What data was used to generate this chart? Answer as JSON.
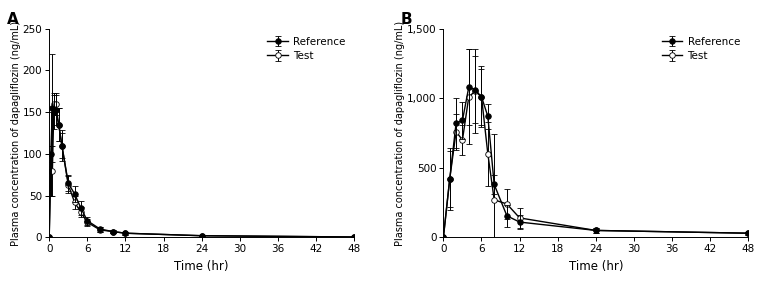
{
  "panel_A": {
    "title": "A",
    "ylabel": "Plasma concentration of dapagliflozin (ng/mL)",
    "xlabel": "Time (hr)",
    "ylim": [
      0,
      250
    ],
    "xlim": [
      0,
      48
    ],
    "yticks": [
      0,
      50,
      100,
      150,
      200,
      250
    ],
    "ytick_labels": [
      "0",
      "50",
      "100",
      "150",
      "200",
      "250"
    ],
    "xticks": [
      0,
      6,
      12,
      18,
      24,
      30,
      36,
      42,
      48
    ],
    "ref_x": [
      0,
      0.25,
      0.5,
      0.75,
      1.0,
      1.5,
      2.0,
      3.0,
      4.0,
      5.0,
      6.0,
      8.0,
      10.0,
      12.0,
      24.0,
      48.0
    ],
    "ref_y": [
      0,
      100,
      155,
      150,
      152,
      135,
      110,
      65,
      52,
      35,
      20,
      10,
      7,
      5,
      2,
      0.5
    ],
    "ref_err": [
      0,
      50,
      65,
      20,
      18,
      20,
      18,
      10,
      10,
      8,
      5,
      3,
      2,
      2,
      1,
      0.3
    ],
    "test_x": [
      0,
      0.25,
      0.5,
      0.75,
      1.0,
      1.5,
      2.0,
      3.0,
      4.0,
      5.0,
      6.0,
      8.0,
      10.0,
      12.0,
      24.0,
      48.0
    ],
    "test_y": [
      0,
      80,
      80,
      160,
      160,
      135,
      110,
      63,
      42,
      30,
      18,
      9,
      7,
      5,
      2,
      0.5
    ],
    "test_err": [
      0,
      30,
      30,
      13,
      13,
      20,
      15,
      10,
      8,
      6,
      4,
      3,
      2,
      2,
      1,
      0.2
    ]
  },
  "panel_B": {
    "title": "B",
    "ylabel": "Plasma concentration of dapagliflozin (ng/mL)",
    "xlabel": "Time (hr)",
    "ylim": [
      0,
      1500
    ],
    "xlim": [
      0,
      48
    ],
    "yticks": [
      0,
      500,
      1000,
      1500
    ],
    "ytick_labels": [
      "0",
      "500",
      "1,000",
      "1,500"
    ],
    "xticks": [
      0,
      6,
      12,
      18,
      24,
      30,
      36,
      42,
      48
    ],
    "ref_x": [
      0,
      1.0,
      2.0,
      3.0,
      4.0,
      5.0,
      6.0,
      7.0,
      8.0,
      10.0,
      12.0,
      24.0,
      48.0
    ],
    "ref_y": [
      0,
      420,
      820,
      840,
      1080,
      1060,
      1010,
      870,
      380,
      155,
      110,
      50,
      30
    ],
    "ref_err": [
      0,
      220,
      180,
      130,
      270,
      240,
      200,
      90,
      70,
      80,
      50,
      20,
      10
    ],
    "test_x": [
      0,
      1.0,
      2.0,
      3.0,
      4.0,
      5.0,
      6.0,
      7.0,
      8.0,
      10.0,
      12.0,
      24.0,
      48.0
    ],
    "test_y": [
      0,
      420,
      760,
      700,
      1010,
      1050,
      1010,
      600,
      270,
      240,
      140,
      50,
      30
    ],
    "test_err": [
      0,
      200,
      130,
      110,
      340,
      300,
      220,
      230,
      470,
      110,
      70,
      20,
      10
    ]
  },
  "legend_ref": "Reference",
  "legend_test": "Test",
  "ref_color": "black",
  "test_color": "black",
  "ref_marker": "o",
  "ref_markerfacecolor": "black",
  "test_marker": "o",
  "test_markerfacecolor": "white",
  "linewidth": 1.0,
  "markersize": 4,
  "capsize": 2,
  "elinewidth": 0.7,
  "capthick": 0.7
}
